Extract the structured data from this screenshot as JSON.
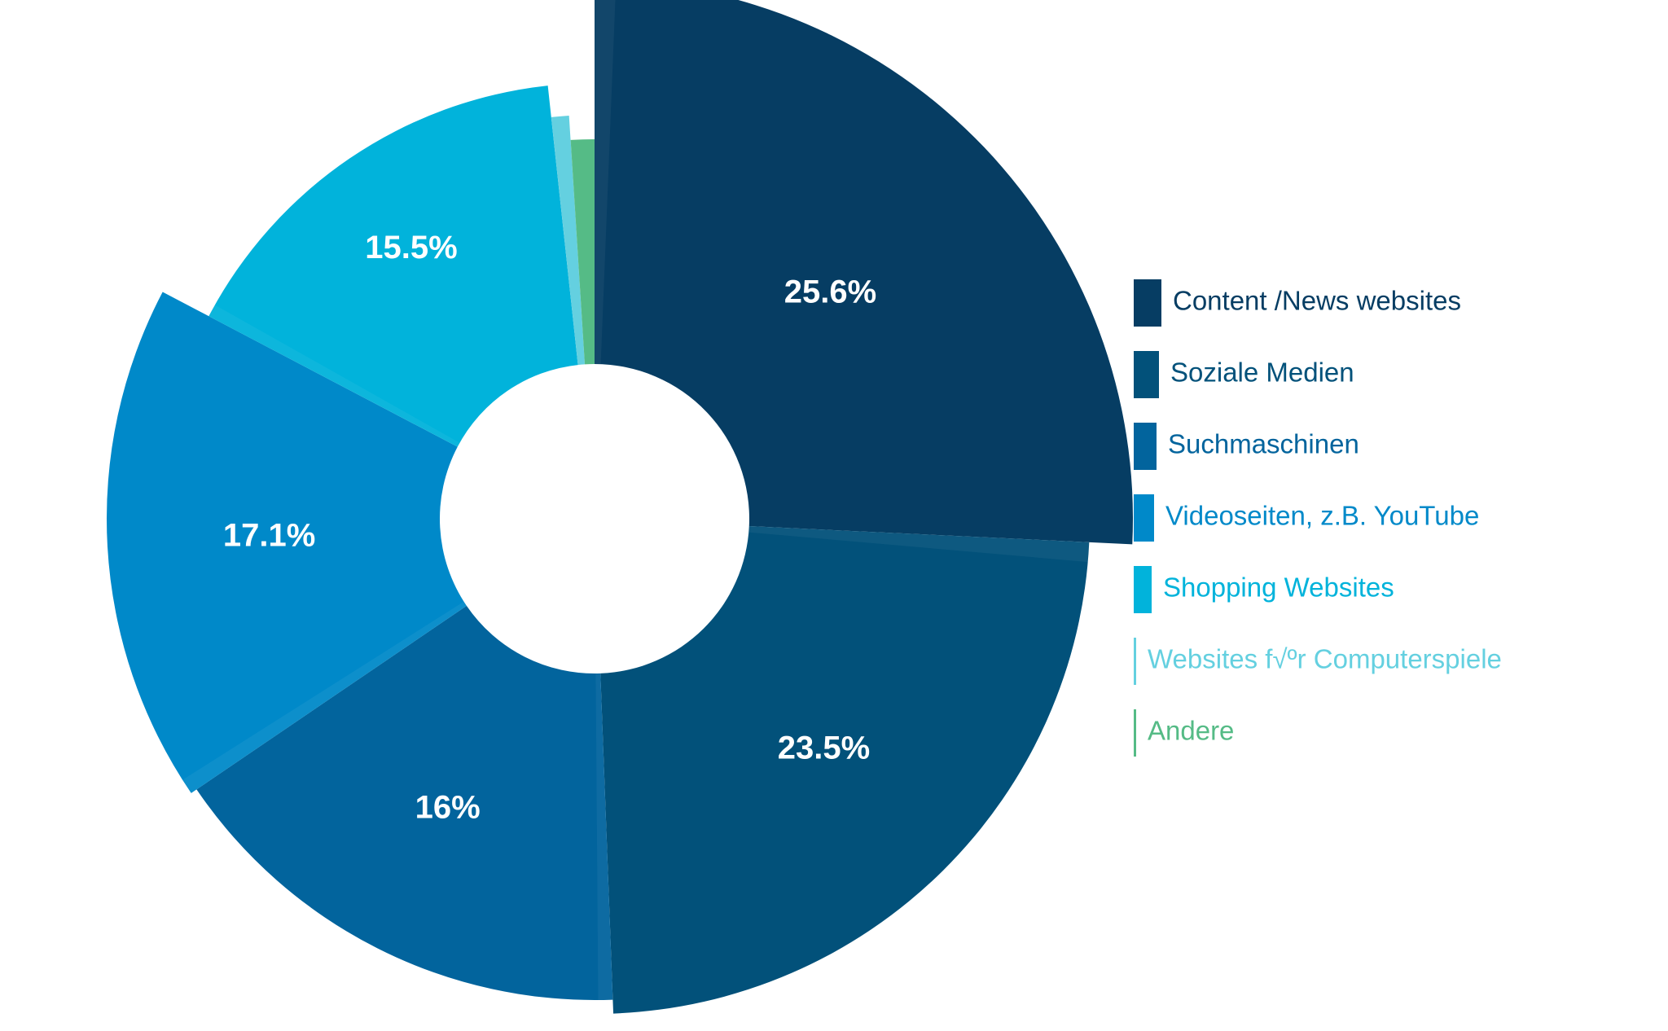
{
  "chart_data": {
    "type": "pie",
    "variant": "donut",
    "title": "",
    "legend_position": "right",
    "slices": [
      {
        "label": "Content /News websites",
        "value": 25.6,
        "value_label": "25.6%",
        "color": "#063d63"
      },
      {
        "label": "Soziale Medien",
        "value": 23.5,
        "value_label": "23.5%",
        "color": "#02517a"
      },
      {
        "label": "Suchmaschinen",
        "value": 16,
        "value_label": "16%",
        "color": "#02649d"
      },
      {
        "label": "Videoseiten, z.B. YouTube",
        "value": 17.1,
        "value_label": "17.1%",
        "color": "#0089c9"
      },
      {
        "label": "Shopping Websites",
        "value": 15.5,
        "value_label": "15.5%",
        "color": "#01b3db"
      },
      {
        "label": "Websites f√ºr Computerspiele",
        "value": 0.7,
        "value_label": "",
        "color": "#64d0e0"
      },
      {
        "label": "Andere",
        "value": 1.0,
        "value_label": "",
        "color": "#55bb86"
      }
    ]
  }
}
